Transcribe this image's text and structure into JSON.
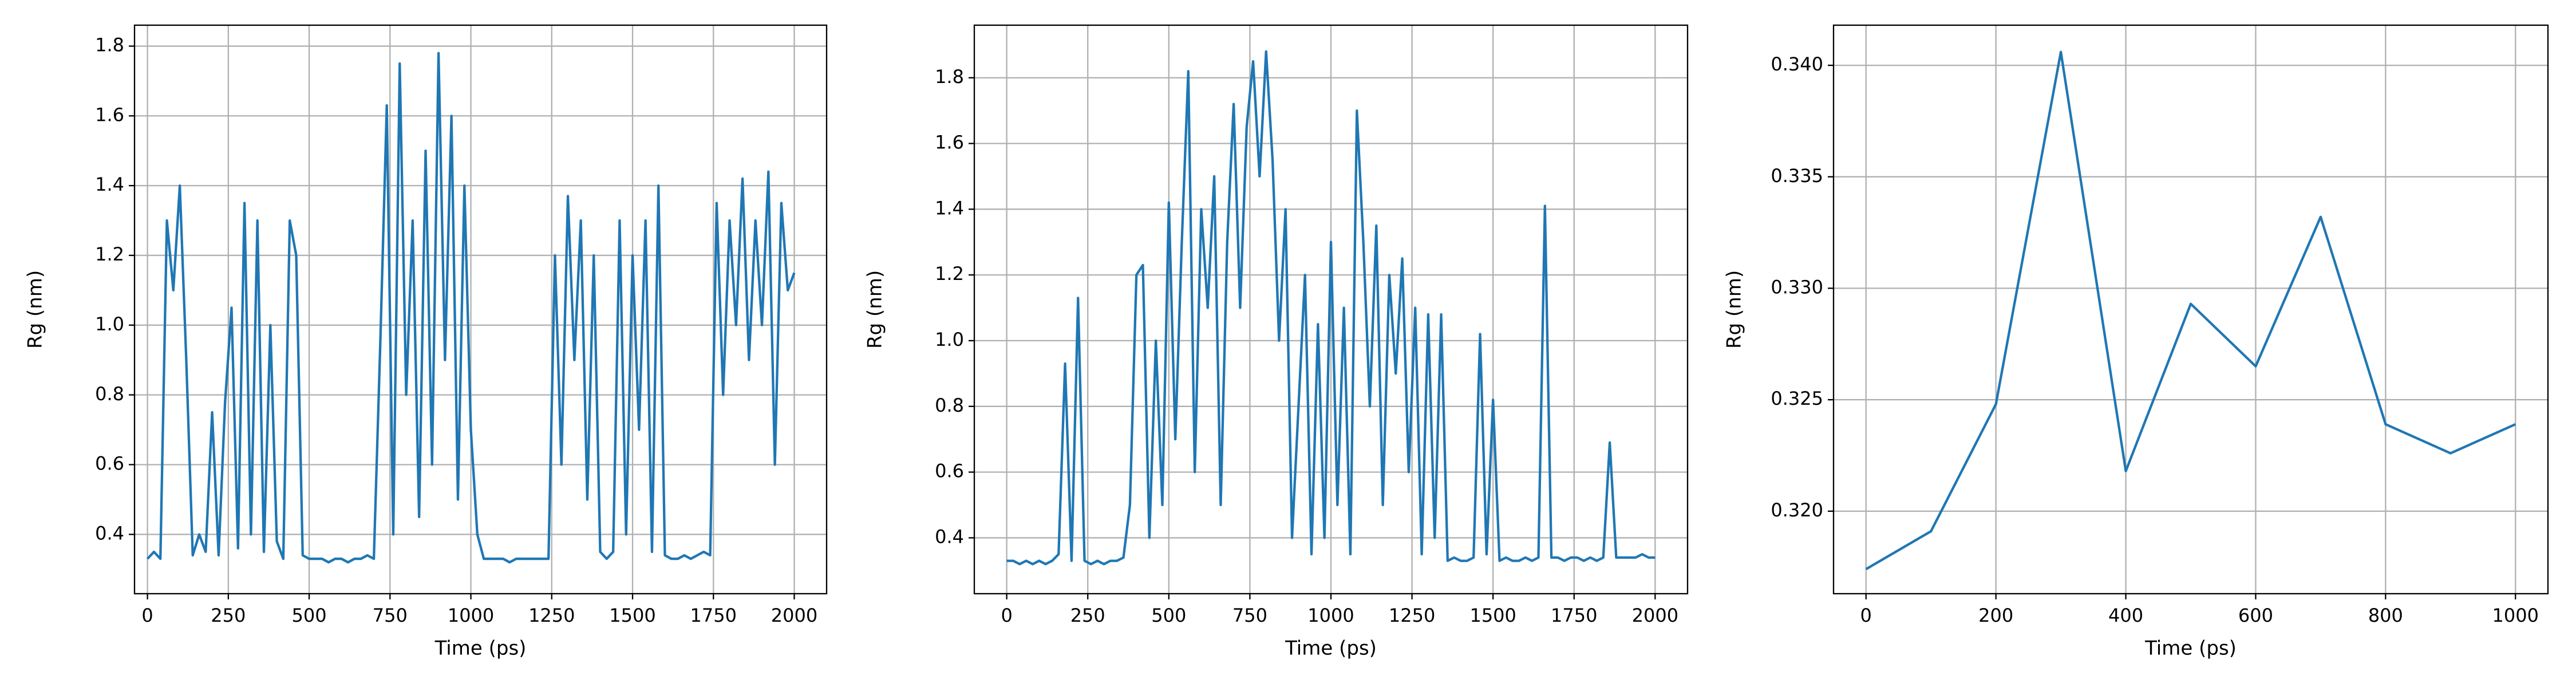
{
  "chart_data": [
    {
      "type": "line",
      "xlabel": "Time (ps)",
      "ylabel": "Rg (nm)",
      "color": "#1f77b4",
      "grid": true,
      "x": [
        0,
        20,
        40,
        60,
        80,
        100,
        120,
        140,
        160,
        180,
        200,
        220,
        240,
        260,
        280,
        300,
        320,
        340,
        360,
        380,
        400,
        420,
        440,
        460,
        480,
        500,
        520,
        540,
        560,
        580,
        600,
        620,
        640,
        660,
        680,
        700,
        720,
        740,
        760,
        780,
        800,
        820,
        840,
        860,
        880,
        900,
        920,
        940,
        960,
        980,
        1000,
        1020,
        1040,
        1060,
        1080,
        1100,
        1120,
        1140,
        1160,
        1180,
        1200,
        1220,
        1240,
        1260,
        1280,
        1300,
        1320,
        1340,
        1360,
        1380,
        1400,
        1420,
        1440,
        1460,
        1480,
        1500,
        1520,
        1540,
        1560,
        1580,
        1600,
        1620,
        1640,
        1660,
        1680,
        1700,
        1720,
        1740,
        1760,
        1780,
        1800,
        1820,
        1840,
        1860,
        1880,
        1900,
        1920,
        1940,
        1960,
        1980,
        2000
      ],
      "values": [
        0.33,
        0.35,
        0.33,
        1.3,
        1.1,
        1.4,
        0.9,
        0.34,
        0.4,
        0.35,
        0.75,
        0.34,
        0.78,
        1.05,
        0.36,
        1.35,
        0.4,
        1.3,
        0.35,
        1.0,
        0.38,
        0.33,
        1.3,
        1.2,
        0.34,
        0.33,
        0.33,
        0.33,
        0.32,
        0.33,
        0.33,
        0.32,
        0.33,
        0.33,
        0.34,
        0.33,
        0.95,
        1.63,
        0.4,
        1.75,
        0.8,
        1.3,
        0.45,
        1.5,
        0.6,
        1.78,
        0.9,
        1.6,
        0.5,
        1.4,
        0.7,
        0.4,
        0.33,
        0.33,
        0.33,
        0.33,
        0.32,
        0.33,
        0.33,
        0.33,
        0.33,
        0.33,
        0.33,
        1.2,
        0.6,
        1.37,
        0.9,
        1.3,
        0.5,
        1.2,
        0.35,
        0.33,
        0.35,
        1.3,
        0.4,
        1.2,
        0.7,
        1.3,
        0.35,
        1.4,
        0.34,
        0.33,
        0.33,
        0.34,
        0.33,
        0.34,
        0.35,
        0.34,
        1.35,
        0.8,
        1.3,
        1.0,
        1.42,
        0.9,
        1.3,
        1.0,
        1.44,
        0.6,
        1.35,
        1.1,
        1.15
      ],
      "xlim": [
        -40,
        2100
      ],
      "xticks": [
        0,
        250,
        500,
        750,
        1000,
        1250,
        1500,
        1750,
        2000
      ],
      "ylim": [
        0.23,
        1.86
      ],
      "yticks": [
        0.4,
        0.6,
        0.8,
        {
          "value": 1,
          "label": "1.0"
        },
        1.2,
        1.4,
        1.6,
        1.8
      ]
    },
    {
      "type": "line",
      "xlabel": "Time (ps)",
      "ylabel": "Rg (nm)",
      "color": "#1f77b4",
      "grid": true,
      "x": [
        0,
        20,
        40,
        60,
        80,
        100,
        120,
        140,
        160,
        180,
        200,
        220,
        240,
        260,
        280,
        300,
        320,
        340,
        360,
        380,
        400,
        420,
        440,
        460,
        480,
        500,
        520,
        540,
        560,
        580,
        600,
        620,
        640,
        660,
        680,
        700,
        720,
        740,
        760,
        780,
        800,
        820,
        840,
        860,
        880,
        900,
        920,
        940,
        960,
        980,
        1000,
        1020,
        1040,
        1060,
        1080,
        1100,
        1120,
        1140,
        1160,
        1180,
        1200,
        1220,
        1240,
        1260,
        1280,
        1300,
        1320,
        1340,
        1360,
        1380,
        1400,
        1420,
        1440,
        1460,
        1480,
        1500,
        1520,
        1540,
        1560,
        1580,
        1600,
        1620,
        1640,
        1660,
        1680,
        1700,
        1720,
        1740,
        1760,
        1780,
        1800,
        1820,
        1840,
        1860,
        1880,
        1900,
        1920,
        1940,
        1960,
        1980,
        2000
      ],
      "values": [
        0.33,
        0.33,
        0.32,
        0.33,
        0.32,
        0.33,
        0.32,
        0.33,
        0.35,
        0.93,
        0.33,
        1.13,
        0.33,
        0.32,
        0.33,
        0.32,
        0.33,
        0.33,
        0.34,
        0.5,
        1.2,
        1.23,
        0.4,
        1.0,
        0.5,
        1.42,
        0.7,
        1.3,
        1.82,
        0.6,
        1.4,
        1.1,
        1.5,
        0.5,
        1.3,
        1.72,
        1.1,
        1.65,
        1.85,
        1.5,
        1.88,
        1.55,
        1.0,
        1.4,
        0.4,
        0.8,
        1.2,
        0.35,
        1.05,
        0.4,
        1.3,
        0.5,
        1.1,
        0.35,
        1.7,
        1.3,
        0.8,
        1.35,
        0.5,
        1.2,
        0.9,
        1.25,
        0.6,
        1.1,
        0.35,
        1.08,
        0.4,
        1.08,
        0.33,
        0.34,
        0.33,
        0.33,
        0.34,
        1.02,
        0.35,
        0.82,
        0.33,
        0.34,
        0.33,
        0.33,
        0.34,
        0.33,
        0.34,
        1.41,
        0.34,
        0.34,
        0.33,
        0.34,
        0.34,
        0.33,
        0.34,
        0.33,
        0.34,
        0.69,
        0.34,
        0.34,
        0.34,
        0.34,
        0.35,
        0.34,
        0.34
      ],
      "xlim": [
        -100,
        2100
      ],
      "xticks": [
        0,
        250,
        500,
        750,
        1000,
        1250,
        1500,
        1750,
        2000
      ],
      "ylim": [
        0.23,
        1.96
      ],
      "yticks": [
        0.4,
        0.6,
        0.8,
        {
          "value": 1,
          "label": "1.0"
        },
        1.2,
        1.4,
        1.6,
        1.8
      ]
    },
    {
      "type": "line",
      "xlabel": "Time (ps)",
      "ylabel": "Rg (nm)",
      "color": "#1f77b4",
      "grid": true,
      "x": [
        0,
        100,
        200,
        300,
        400,
        500,
        600,
        700,
        800,
        900,
        1000
      ],
      "values": [
        0.3174,
        0.3191,
        0.3248,
        0.3406,
        0.3218,
        0.3293,
        0.3265,
        0.3332,
        0.3239,
        0.3226,
        0.3239
      ],
      "xlim": [
        -50,
        1050
      ],
      "xticks": [
        0,
        200,
        400,
        600,
        800,
        1000
      ],
      "ylim": [
        0.3163,
        0.3418
      ],
      "yticks": [
        {
          "value": 0.32,
          "label": "0.320"
        },
        0.325,
        {
          "value": 0.33,
          "label": "0.330"
        },
        0.335,
        {
          "value": 0.34,
          "label": "0.340"
        }
      ]
    }
  ]
}
